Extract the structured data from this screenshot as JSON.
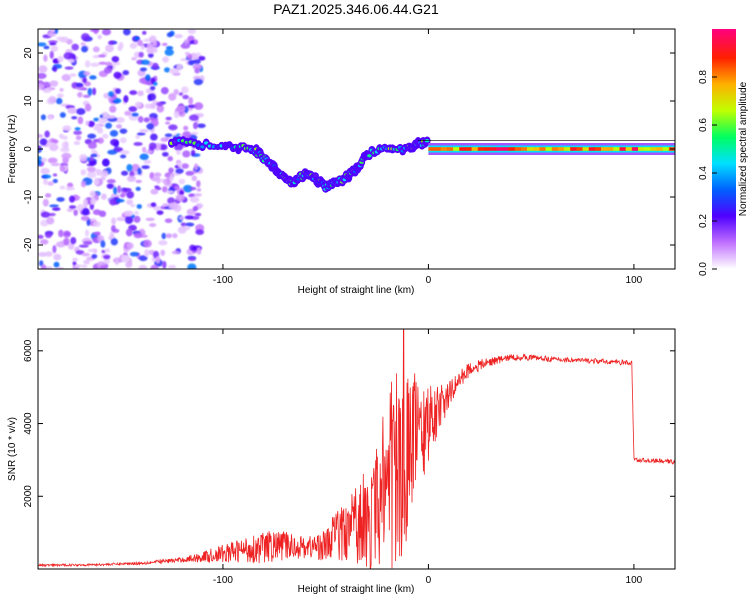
{
  "title": "PAZ1.2025.346.06.44.G21",
  "chart_data": [
    {
      "type": "heatmap",
      "name": "spectrogram",
      "xlabel": "Height of straight line (km)",
      "ylabel": "Frequency (Hz)",
      "xlim": [
        -190,
        120
      ],
      "ylim": [
        -25,
        25
      ],
      "x_ticks": [
        "-100",
        "0",
        "100"
      ],
      "y_ticks": [
        "-20",
        "-10",
        "0",
        "10",
        "20"
      ],
      "colorbar": {
        "label": "Normalized spectral amplitude",
        "range": [
          0,
          1
        ],
        "ticks": [
          "0.0",
          "0.2",
          "0.4",
          "0.6",
          "0.8"
        ],
        "colors": [
          "#ffffff",
          "#c070ff",
          "#5000ff",
          "#0060ff",
          "#00e0ff",
          "#00ff60",
          "#c0ff00",
          "#ffb000",
          "#ff2000",
          "#ff0080"
        ]
      },
      "features": [
        {
          "name": "noise-region",
          "x": [
            -190,
            -110
          ],
          "freq": [
            -25,
            25
          ],
          "amplitude": 0.15
        },
        {
          "name": "descending-track",
          "points": [
            [
              -125,
              1.5
            ],
            [
              -110,
              1
            ],
            [
              -95,
              0.5
            ],
            [
              -85,
              0
            ],
            [
              -80,
              -2
            ],
            [
              -75,
              -4
            ],
            [
              -70,
              -6
            ],
            [
              -65,
              -7
            ],
            [
              -60,
              -5
            ],
            [
              -55,
              -6
            ],
            [
              -50,
              -8
            ],
            [
              -45,
              -7
            ],
            [
              -40,
              -6
            ],
            [
              -35,
              -4
            ],
            [
              -30,
              -1
            ],
            [
              -20,
              0
            ],
            [
              -10,
              0
            ],
            [
              -5,
              1
            ],
            [
              0,
              1.5
            ]
          ],
          "amplitude": 0.5
        },
        {
          "name": "carrier-line",
          "x": [
            0,
            120
          ],
          "freq": 0,
          "amplitude": 0.95
        }
      ]
    },
    {
      "type": "line",
      "name": "snr",
      "xlabel": "Height of straight line (km)",
      "ylabel": "SNR (10 * v/v)",
      "xlim": [
        -190,
        120
      ],
      "ylim": [
        0,
        6600
      ],
      "x_ticks": [
        "-100",
        "0",
        "100"
      ],
      "y_ticks": [
        "2000",
        "4000",
        "6000"
      ],
      "color": "#ee2222",
      "envelope": {
        "x": [
          -190,
          -160,
          -140,
          -120,
          -110,
          -100,
          -90,
          -80,
          -70,
          -60,
          -50,
          -40,
          -30,
          -25,
          -20,
          -15,
          -10,
          -5,
          0,
          5,
          10,
          15,
          20,
          30,
          40,
          50,
          60,
          80,
          95,
          99,
          100,
          101,
          120
        ],
        "base": [
          100,
          120,
          160,
          250,
          330,
          420,
          520,
          600,
          650,
          600,
          650,
          850,
          1100,
          1500,
          1800,
          2300,
          2900,
          3400,
          3800,
          4200,
          4800,
          5200,
          5500,
          5700,
          5820,
          5820,
          5770,
          5720,
          5680,
          5650,
          3050,
          3000,
          2950
        ],
        "spread": [
          30,
          30,
          40,
          70,
          150,
          250,
          350,
          450,
          400,
          300,
          450,
          700,
          1200,
          1600,
          2200,
          2600,
          2200,
          1300,
          900,
          600,
          350,
          250,
          200,
          120,
          90,
          80,
          70,
          70,
          70,
          70,
          60,
          60,
          60
        ]
      },
      "peak_value": 6600,
      "peak_x": -12
    }
  ]
}
